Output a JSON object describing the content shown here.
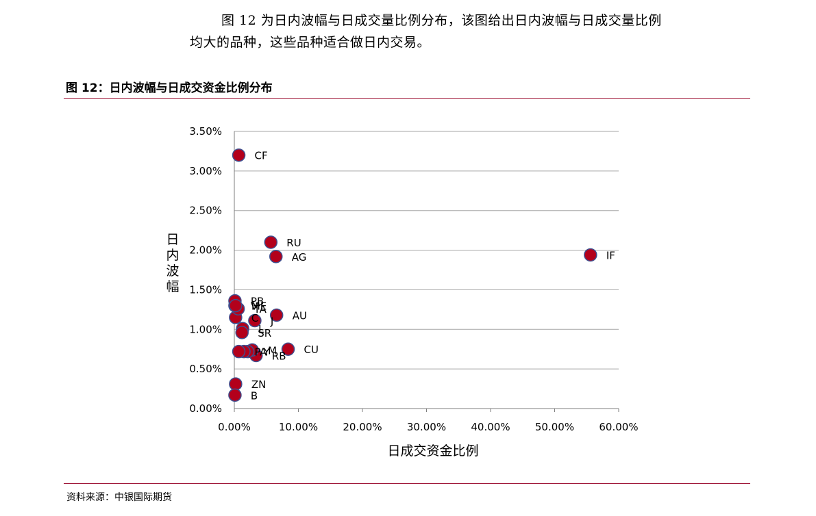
{
  "intro": {
    "line1": "图 12 为日内波幅与日成交量比例分布，该图给出日内波幅与日成交量比例",
    "line2": "均大的品种，这些品种适合做日内交易。"
  },
  "figure_title": "图 12：日内波幅与日成交资金比例分布",
  "source": "资料来源：中银国际期货",
  "colors": {
    "accent": "#a0183a",
    "marker_fill": "#b3001b",
    "marker_edge": "#3f4f8f",
    "grid": "#a6a6a6"
  },
  "chart_data": {
    "type": "scatter",
    "xlabel": "日成交资金比例",
    "ylabel": "日内波幅",
    "xlim": [
      0,
      0.6
    ],
    "ylim": [
      0,
      0.035
    ],
    "x_ticks": [
      "0.00%",
      "10.00%",
      "20.00%",
      "30.00%",
      "40.00%",
      "50.00%",
      "60.00%"
    ],
    "y_ticks": [
      "0.00%",
      "0.50%",
      "1.00%",
      "1.50%",
      "2.00%",
      "2.50%",
      "3.00%",
      "3.50%"
    ],
    "grid": "horizontal",
    "points": [
      {
        "label": "CF",
        "x": 0.007,
        "y": 0.032
      },
      {
        "label": "RU",
        "x": 0.057,
        "y": 0.021
      },
      {
        "label": "AG",
        "x": 0.065,
        "y": 0.0192
      },
      {
        "label": "IF",
        "x": 0.556,
        "y": 0.0194
      },
      {
        "label": "AU",
        "x": 0.066,
        "y": 0.0118
      },
      {
        "label": "CU",
        "x": 0.084,
        "y": 0.0075
      },
      {
        "label": "RB",
        "x": 0.034,
        "y": 0.0067
      },
      {
        "label": "M",
        "x": 0.028,
        "y": 0.0074
      },
      {
        "label": "Y",
        "x": 0.021,
        "y": 0.0072
      },
      {
        "label": "A",
        "x": 0.015,
        "y": 0.0072
      },
      {
        "label": "P",
        "x": 0.007,
        "y": 0.0072
      },
      {
        "label": "J",
        "x": 0.032,
        "y": 0.0111
      },
      {
        "label": "C",
        "x": 0.002,
        "y": 0.0115
      },
      {
        "label": "L",
        "x": 0.013,
        "y": 0.0101
      },
      {
        "label": "SR",
        "x": 0.012,
        "y": 0.0096
      },
      {
        "label": "TA",
        "x": 0.006,
        "y": 0.0126
      },
      {
        "label": "V",
        "x": 0.001,
        "y": 0.013
      },
      {
        "label": "PB",
        "x": 0.001,
        "y": 0.0136
      },
      {
        "label": "ME",
        "x": 0.002,
        "y": 0.013
      },
      {
        "label": "ZN",
        "x": 0.002,
        "y": 0.0031
      },
      {
        "label": "B",
        "x": 0.001,
        "y": 0.0017
      }
    ]
  }
}
